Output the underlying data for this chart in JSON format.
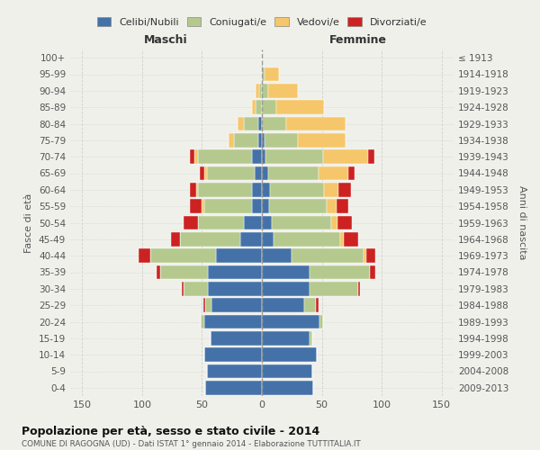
{
  "age_groups": [
    "0-4",
    "5-9",
    "10-14",
    "15-19",
    "20-24",
    "25-29",
    "30-34",
    "35-39",
    "40-44",
    "45-49",
    "50-54",
    "55-59",
    "60-64",
    "65-69",
    "70-74",
    "75-79",
    "80-84",
    "85-89",
    "90-94",
    "95-99",
    "100+"
  ],
  "birth_years": [
    "2009-2013",
    "2004-2008",
    "1999-2003",
    "1994-1998",
    "1989-1993",
    "1984-1988",
    "1979-1983",
    "1974-1978",
    "1969-1973",
    "1964-1968",
    "1959-1963",
    "1954-1958",
    "1949-1953",
    "1944-1948",
    "1939-1943",
    "1934-1938",
    "1929-1933",
    "1924-1928",
    "1919-1923",
    "1914-1918",
    "≤ 1913"
  ],
  "maschi": {
    "celibi": [
      47,
      46,
      48,
      43,
      48,
      42,
      45,
      45,
      38,
      18,
      15,
      8,
      8,
      6,
      8,
      3,
      3,
      0,
      0,
      0,
      0
    ],
    "coniugati": [
      0,
      0,
      0,
      0,
      3,
      5,
      20,
      40,
      55,
      50,
      38,
      40,
      45,
      40,
      45,
      20,
      12,
      5,
      2,
      0,
      0
    ],
    "vedovi": [
      0,
      0,
      0,
      0,
      0,
      0,
      0,
      0,
      0,
      0,
      0,
      2,
      2,
      2,
      3,
      5,
      5,
      3,
      3,
      0,
      0
    ],
    "divorziati": [
      0,
      0,
      0,
      0,
      0,
      2,
      2,
      3,
      10,
      8,
      12,
      10,
      5,
      4,
      4,
      0,
      0,
      0,
      0,
      0,
      0
    ]
  },
  "femmine": {
    "nubili": [
      43,
      42,
      46,
      40,
      48,
      35,
      40,
      40,
      25,
      10,
      8,
      6,
      7,
      5,
      3,
      2,
      0,
      0,
      0,
      0,
      0
    ],
    "coniugate": [
      0,
      0,
      0,
      2,
      3,
      10,
      40,
      50,
      60,
      55,
      50,
      48,
      45,
      42,
      48,
      28,
      20,
      12,
      5,
      2,
      0
    ],
    "vedove": [
      0,
      0,
      0,
      0,
      0,
      0,
      0,
      0,
      2,
      3,
      5,
      8,
      12,
      25,
      38,
      40,
      50,
      40,
      25,
      12,
      0
    ],
    "divorziate": [
      0,
      0,
      0,
      0,
      0,
      2,
      2,
      5,
      8,
      12,
      12,
      10,
      10,
      5,
      5,
      0,
      0,
      0,
      0,
      0,
      0
    ]
  },
  "colors": {
    "celibi": "#4472a8",
    "coniugati": "#b5c98e",
    "vedovi": "#f5c76a",
    "divorziati": "#cc2222"
  },
  "title": "Popolazione per età, sesso e stato civile - 2014",
  "subtitle": "COMUNE DI RAGOGNA (UD) - Dati ISTAT 1° gennaio 2014 - Elaborazione TUTTITALIA.IT",
  "xlabel_left": "Maschi",
  "xlabel_right": "Femmine",
  "ylabel_left": "Fasce di età",
  "ylabel_right": "Anni di nascita",
  "xlim": 160,
  "xticks": [
    -150,
    -100,
    -50,
    0,
    50,
    100,
    150
  ],
  "legend_labels": [
    "Celibi/Nubili",
    "Coniugati/e",
    "Vedovi/e",
    "Divorziati/e"
  ],
  "background_color": "#f0f0eb"
}
